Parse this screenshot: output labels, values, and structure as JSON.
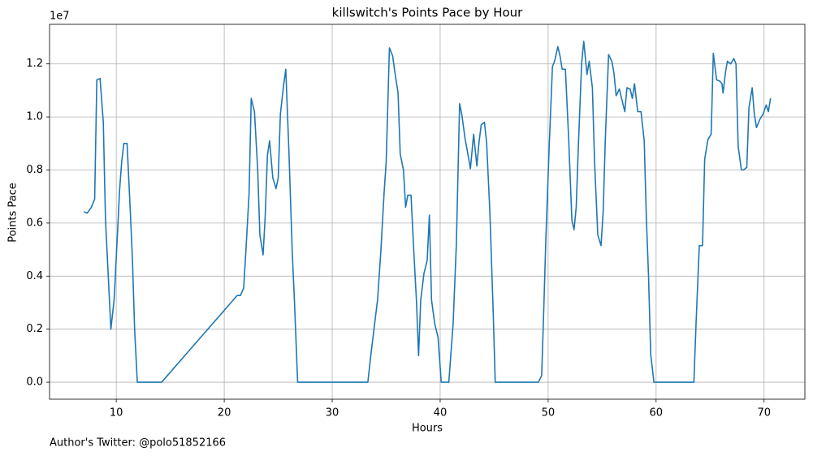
{
  "chart_data": {
    "type": "line",
    "title": "killswitch's Points Pace by Hour",
    "x_label": "Hours",
    "y_label": "Points Pace",
    "y_offset_label": "1e7",
    "footnote": "Author's Twitter: @polo51852166",
    "color": "#1f77b4",
    "grid": true,
    "xlim": [
      3.82,
      73.78
    ],
    "ylim": [
      -0.064,
      1.349
    ],
    "xticks": [
      10,
      20,
      30,
      40,
      50,
      60,
      70
    ],
    "yticks": [
      {
        "value": 0,
        "label": "0.0"
      },
      {
        "value": 0.2,
        "label": "0.2"
      },
      {
        "value": 0.4,
        "label": "0.4"
      },
      {
        "value": 0.6,
        "label": "0.6"
      },
      {
        "value": 0.8,
        "label": "0.8"
      },
      {
        "value": 1.0,
        "label": "1.0"
      },
      {
        "value": 1.2,
        "label": "1.2"
      }
    ],
    "x": [
      7.0,
      7.3,
      7.7,
      8.0,
      8.2,
      8.5,
      8.8,
      9.0,
      9.5,
      9.8,
      10.1,
      10.3,
      10.5,
      10.7,
      11.0,
      11.3,
      11.5,
      11.7,
      11.95,
      14.2,
      21.2,
      21.5,
      21.8,
      22.0,
      22.3,
      22.5,
      22.8,
      23.1,
      23.3,
      23.6,
      23.8,
      24.0,
      24.2,
      24.5,
      24.8,
      25.0,
      25.2,
      25.5,
      25.7,
      26.0,
      26.3,
      26.5,
      26.8,
      33.3,
      33.6,
      34.2,
      34.5,
      34.8,
      35.0,
      35.3,
      35.6,
      35.8,
      36.1,
      36.3,
      36.6,
      36.8,
      37.0,
      37.3,
      37.6,
      37.8,
      38.0,
      38.2,
      38.5,
      38.8,
      39.0,
      39.2,
      39.5,
      39.8,
      40.1,
      40.8,
      41.2,
      41.5,
      41.8,
      42.0,
      42.3,
      42.5,
      42.8,
      43.1,
      43.4,
      43.6,
      43.8,
      44.1,
      44.3,
      44.6,
      44.9,
      45.1,
      49.1,
      49.4,
      49.6,
      49.8,
      50.1,
      50.4,
      50.6,
      50.9,
      51.1,
      51.3,
      51.6,
      51.9,
      52.2,
      52.4,
      52.6,
      52.8,
      53.1,
      53.3,
      53.6,
      53.8,
      54.1,
      54.3,
      54.6,
      54.9,
      55.1,
      55.3,
      55.6,
      55.9,
      56.1,
      56.3,
      56.6,
      56.8,
      57.1,
      57.3,
      57.6,
      57.8,
      58.0,
      58.3,
      58.6,
      58.9,
      59.1,
      59.3,
      59.5,
      59.8,
      63.5,
      63.7,
      64.0,
      64.3,
      64.5,
      64.8,
      65.1,
      65.3,
      65.6,
      65.9,
      66.1,
      66.2,
      66.4,
      66.6,
      66.9,
      67.2,
      67.4,
      67.6,
      67.9,
      68.1,
      68.4,
      68.6,
      68.9,
      69.1,
      69.3,
      69.6,
      69.9,
      70.2,
      70.4,
      70.6
    ],
    "values": [
      0.643,
      0.637,
      0.66,
      0.69,
      1.14,
      1.145,
      0.98,
      0.615,
      0.2,
      0.31,
      0.55,
      0.72,
      0.83,
      0.9,
      0.9,
      0.645,
      0.46,
      0.2,
      0,
      0,
      0.327,
      0.327,
      0.355,
      0.49,
      0.71,
      1.07,
      1.02,
      0.8,
      0.555,
      0.48,
      0.63,
      0.855,
      0.91,
      0.77,
      0.73,
      0.77,
      1.01,
      1.12,
      1.18,
      0.86,
      0.49,
      0.31,
      0,
      0,
      0.11,
      0.31,
      0.49,
      0.71,
      0.83,
      1.26,
      1.23,
      1.17,
      1.09,
      0.86,
      0.8,
      0.66,
      0.705,
      0.705,
      0.46,
      0.31,
      0.1,
      0.31,
      0.41,
      0.46,
      0.63,
      0.31,
      0.22,
      0.17,
      0,
      0,
      0.22,
      0.52,
      1.05,
      1.01,
      0.92,
      0.875,
      0.805,
      0.935,
      0.815,
      0.905,
      0.97,
      0.98,
      0.905,
      0.645,
      0.28,
      0,
      0,
      0.025,
      0.28,
      0.555,
      0.89,
      1.19,
      1.21,
      1.265,
      1.23,
      1.18,
      1.18,
      0.92,
      0.61,
      0.575,
      0.66,
      0.89,
      1.2,
      1.285,
      1.16,
      1.21,
      1.11,
      0.83,
      0.555,
      0.515,
      0.645,
      0.92,
      1.235,
      1.21,
      1.165,
      1.08,
      1.105,
      1.07,
      1.02,
      1.11,
      1.105,
      1.07,
      1.125,
      1.02,
      1.02,
      0.91,
      0.615,
      0.4,
      0.105,
      0,
      0,
      0.22,
      0.515,
      0.515,
      0.84,
      0.915,
      0.935,
      1.24,
      1.14,
      1.135,
      1.125,
      1.09,
      1.16,
      1.21,
      1.2,
      1.22,
      1.2,
      0.89,
      0.8,
      0.8,
      0.81,
      1.035,
      1.11,
      1.01,
      0.96,
      0.99,
      1.01,
      1.045,
      1.02,
      1.07
    ]
  }
}
